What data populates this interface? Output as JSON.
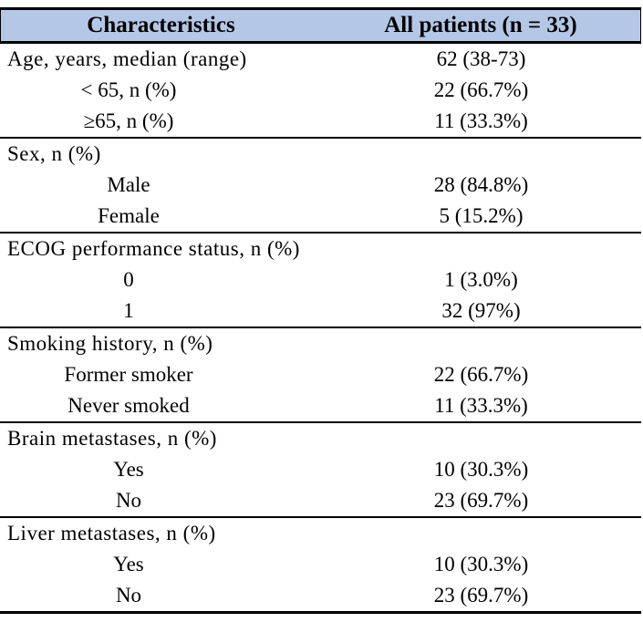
{
  "header": {
    "characteristics_label": "Characteristics",
    "patients_label": "All patients (n = 33)"
  },
  "colors": {
    "header_bg": "#b4c7e7",
    "border": "#000000"
  },
  "rows": [
    {
      "label": "Age, years, median (range)",
      "value": "62 (38-73)",
      "align": "left",
      "section_start": false
    },
    {
      "label": "< 65, n (%)",
      "value": "22 (66.7%)",
      "align": "center",
      "section_start": false
    },
    {
      "label": "≥65, n (%)",
      "value": "11 (33.3%)",
      "align": "center",
      "section_start": false
    },
    {
      "label": "Sex, n (%)",
      "value": "",
      "align": "left",
      "section_start": true
    },
    {
      "label": "Male",
      "value": "28 (84.8%)",
      "align": "center",
      "section_start": false
    },
    {
      "label": "Female",
      "value": "5 (15.2%)",
      "align": "center",
      "section_start": false
    },
    {
      "label": "ECOG performance status, n (%)",
      "value": "",
      "align": "left",
      "section_start": true
    },
    {
      "label": "0",
      "value": "1 (3.0%)",
      "align": "center",
      "section_start": false
    },
    {
      "label": "1",
      "value": "32 (97%)",
      "align": "center",
      "section_start": false
    },
    {
      "label": "Smoking history, n (%)",
      "value": "",
      "align": "left",
      "section_start": true
    },
    {
      "label": "Former smoker",
      "value": "22 (66.7%)",
      "align": "center",
      "section_start": false
    },
    {
      "label": "Never smoked",
      "value": "11 (33.3%)",
      "align": "center",
      "section_start": false
    },
    {
      "label": "Brain metastases, n (%)",
      "value": "",
      "align": "left",
      "section_start": true
    },
    {
      "label": "Yes",
      "value": "10 (30.3%)",
      "align": "center",
      "section_start": false
    },
    {
      "label": "No",
      "value": "23 (69.7%)",
      "align": "center",
      "section_start": false
    },
    {
      "label": "Liver metastases, n (%)",
      "value": "",
      "align": "left",
      "section_start": true
    },
    {
      "label": "Yes",
      "value": "10 (30.3%)",
      "align": "center",
      "section_start": false
    },
    {
      "label": "No",
      "value": "23 (69.7%)",
      "align": "center",
      "section_start": false
    }
  ]
}
